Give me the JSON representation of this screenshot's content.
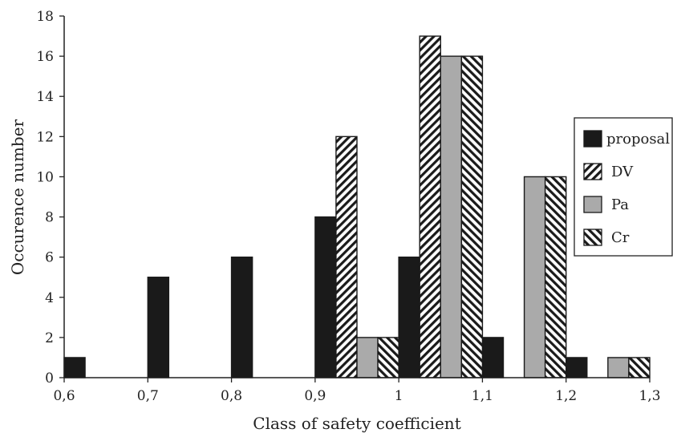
{
  "chart_data": {
    "type": "bar",
    "xlabel": "Class of safety coefficient",
    "ylabel": "Occurence number",
    "xlim": [
      0.6,
      1.3
    ],
    "ylim": [
      0,
      18
    ],
    "x_ticks": [
      "0,6",
      "0,7",
      "0,8",
      "0,9",
      "1",
      "1,1",
      "1,2",
      "1,3"
    ],
    "y_ticks": [
      "0",
      "2",
      "4",
      "6",
      "8",
      "10",
      "12",
      "14",
      "16",
      "18"
    ],
    "legend_position": "right",
    "series": [
      {
        "name": "proposal",
        "pattern": "solid-black",
        "color": "#1a1a1a",
        "points": [
          {
            "x": 0.6,
            "y": 1
          },
          {
            "x": 0.7,
            "y": 5
          },
          {
            "x": 0.8,
            "y": 6
          },
          {
            "x": 0.9,
            "y": 8
          },
          {
            "x": 1.0,
            "y": 6
          },
          {
            "x": 1.1,
            "y": 2
          },
          {
            "x": 1.2,
            "y": 1
          }
        ]
      },
      {
        "name": "DV",
        "pattern": "diagonal-hatch-back",
        "color": "#1a1a1a",
        "points": [
          {
            "x": 0.9,
            "y": 12
          },
          {
            "x": 1.0,
            "y": 17
          }
        ]
      },
      {
        "name": "Pa",
        "pattern": "solid-gray",
        "color": "#aaaaaa",
        "points": [
          {
            "x": 0.9,
            "y": 2
          },
          {
            "x": 1.0,
            "y": 16
          },
          {
            "x": 1.1,
            "y": 10
          },
          {
            "x": 1.2,
            "y": 1
          }
        ]
      },
      {
        "name": "Cr",
        "pattern": "diagonal-hatch-forward",
        "color": "#1a1a1a",
        "points": [
          {
            "x": 0.9,
            "y": 2
          },
          {
            "x": 1.0,
            "y": 16
          },
          {
            "x": 1.1,
            "y": 10
          },
          {
            "x": 1.2,
            "y": 1
          }
        ]
      }
    ]
  }
}
